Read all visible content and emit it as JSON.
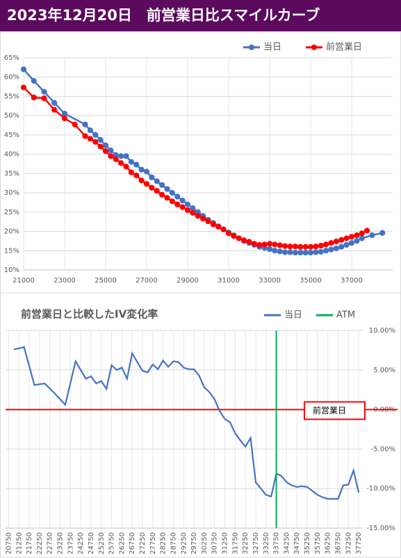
{
  "title": "2023年12月20日　前営業日比スマイルカーブ",
  "chart_data": [
    {
      "type": "line",
      "markers": true,
      "grid": true,
      "legend": "top-right",
      "xlim": [
        21000,
        39000
      ],
      "xticks": [
        21000,
        23000,
        25000,
        27000,
        29000,
        31000,
        33000,
        35000,
        37000
      ],
      "ylim": [
        10,
        65
      ],
      "yticks": [
        {
          "value": 10,
          "label": "10%"
        },
        {
          "value": 15,
          "label": "15%"
        },
        {
          "value": 20,
          "label": "20%"
        },
        {
          "value": 25,
          "label": "25%"
        },
        {
          "value": 30,
          "label": "30%"
        },
        {
          "value": 35,
          "label": "35%"
        },
        {
          "value": 40,
          "label": "40%"
        },
        {
          "value": 45,
          "label": "45%"
        },
        {
          "value": 50,
          "label": "50%"
        },
        {
          "value": 55,
          "label": "55%"
        },
        {
          "value": 60,
          "label": "60%"
        },
        {
          "value": 65,
          "label": "65%"
        }
      ],
      "series": [
        {
          "name": "当日",
          "color": "#4472c4",
          "x": [
            21000,
            21500,
            22000,
            22500,
            23000,
            24000,
            24250,
            24500,
            24750,
            25000,
            25250,
            25500,
            25750,
            26000,
            26250,
            26500,
            26750,
            27000,
            27250,
            27500,
            27750,
            28000,
            28250,
            28500,
            28750,
            29000,
            29250,
            29500,
            29750,
            30000,
            30250,
            30500,
            30750,
            31000,
            31250,
            31500,
            31750,
            32000,
            32250,
            32500,
            32750,
            33000,
            33250,
            33500,
            33750,
            34000,
            34250,
            34500,
            34750,
            35000,
            35250,
            35500,
            35750,
            36000,
            36250,
            36500,
            36750,
            37000,
            37250,
            37500,
            38000,
            38500
          ],
          "values": [
            62.0,
            59.0,
            56.2,
            53.3,
            50.5,
            47.7,
            46.2,
            45.0,
            43.7,
            42.3,
            41.0,
            39.8,
            39.5,
            39.5,
            38.0,
            37.3,
            36.0,
            35.5,
            34.0,
            33.0,
            32.0,
            31.0,
            30.0,
            29.0,
            28.0,
            27.0,
            26.0,
            25.0,
            24.0,
            23.0,
            22.2,
            21.3,
            20.5,
            19.7,
            19.0,
            18.2,
            17.5,
            17.0,
            16.5,
            16.0,
            15.7,
            15.4,
            15.0,
            14.8,
            14.6,
            14.6,
            14.5,
            14.5,
            14.5,
            14.5,
            14.6,
            14.7,
            15.0,
            15.3,
            15.6,
            16.0,
            16.5,
            17.0,
            17.5,
            18.2,
            19.0,
            19.6
          ]
        },
        {
          "name": "前営業日",
          "color": "#ff0000",
          "x": [
            21000,
            21500,
            22000,
            22500,
            23000,
            23500,
            24000,
            24250,
            24500,
            24750,
            25000,
            25250,
            25500,
            25750,
            26000,
            26250,
            26500,
            26750,
            27000,
            27250,
            27500,
            27750,
            28000,
            28250,
            28500,
            28750,
            29000,
            29250,
            29500,
            29750,
            30000,
            30250,
            30500,
            30750,
            31000,
            31250,
            31500,
            31750,
            32000,
            32250,
            32500,
            32750,
            33000,
            33250,
            33500,
            33750,
            34000,
            34250,
            34500,
            34750,
            35000,
            35250,
            35500,
            35750,
            36000,
            36250,
            36500,
            36750,
            37000,
            37250,
            37500,
            37750
          ],
          "values": [
            57.3,
            54.7,
            54.5,
            51.5,
            49.3,
            47.7,
            44.7,
            44.0,
            43.2,
            42.0,
            40.8,
            39.5,
            38.7,
            37.7,
            36.8,
            35.3,
            34.5,
            33.2,
            32.3,
            31.3,
            30.5,
            29.5,
            28.7,
            27.8,
            27.0,
            26.3,
            25.5,
            24.8,
            24.0,
            23.3,
            22.6,
            21.8,
            21.2,
            20.5,
            19.5,
            18.8,
            18.2,
            17.7,
            17.3,
            16.8,
            16.5,
            16.6,
            16.8,
            16.6,
            16.4,
            16.2,
            16.1,
            16.1,
            16.0,
            16.0,
            16.0,
            16.1,
            16.3,
            16.6,
            17.0,
            17.4,
            17.8,
            18.2,
            18.6,
            19.0,
            19.5,
            20.2
          ]
        }
      ]
    },
    {
      "type": "line",
      "markers": false,
      "grid": true,
      "legend": "top-right",
      "title": "前営業日と比較したIV変化率",
      "xlim": [
        20600,
        37950
      ],
      "xticks": [
        20750,
        21250,
        21750,
        22250,
        22750,
        23250,
        23750,
        24250,
        24750,
        25250,
        25750,
        26250,
        26750,
        27250,
        27750,
        28250,
        28750,
        29250,
        29750,
        30250,
        30750,
        31250,
        31750,
        32250,
        32750,
        33250,
        33750,
        34250,
        34750,
        35250,
        35750,
        36250,
        36750,
        37250,
        37750
      ],
      "ylim": [
        -15,
        10
      ],
      "yticks": [
        {
          "value": 10,
          "label": "10.00%"
        },
        {
          "value": 5,
          "label": "5.00%"
        },
        {
          "value": 0,
          "label": "0.00%"
        },
        {
          "value": -5,
          "label": "-5.00%"
        },
        {
          "value": -10,
          "label": "-10.00%"
        },
        {
          "value": -15,
          "label": "-15.00%"
        }
      ],
      "series": [
        {
          "name": "当日",
          "color": "#4472c4",
          "x": [
            21000,
            21500,
            22000,
            22500,
            23000,
            23500,
            24000,
            24250,
            24500,
            24750,
            25000,
            25250,
            25500,
            25750,
            26000,
            26250,
            26500,
            26750,
            27000,
            27250,
            27500,
            27750,
            28000,
            28250,
            28500,
            28750,
            29000,
            29250,
            29500,
            29750,
            30000,
            30250,
            30500,
            30750,
            31000,
            31250,
            31500,
            31750,
            32000,
            32250,
            32500,
            32750,
            33000,
            33250,
            33500,
            33750,
            34000,
            34250,
            34500,
            34750,
            35000,
            35250,
            35500,
            35750,
            36000,
            36250,
            36500,
            36750,
            37000,
            37250,
            37500,
            37750
          ],
          "values": [
            7.6,
            7.9,
            3.1,
            3.3,
            2.0,
            0.6,
            6.1,
            5.0,
            3.9,
            4.2,
            3.3,
            3.6,
            2.6,
            5.6,
            5.0,
            5.3,
            3.9,
            7.1,
            6.0,
            4.9,
            4.7,
            5.7,
            5.1,
            6.2,
            5.4,
            6.1,
            6.0,
            5.3,
            5.1,
            5.1,
            4.3,
            2.8,
            2.2,
            1.3,
            -0.2,
            -1.2,
            -1.6,
            -3.0,
            -3.9,
            -4.7,
            -3.6,
            -9.2,
            -10.0,
            -10.8,
            -11.0,
            -8.1,
            -8.4,
            -9.2,
            -9.6,
            -9.8,
            -9.7,
            -9.8,
            -10.3,
            -10.8,
            -11.1,
            -11.3,
            -11.3,
            -11.3,
            -9.6,
            -9.5,
            -7.7,
            -10.5
          ]
        },
        {
          "name": "ATM",
          "color": "#00b050",
          "x": 33750
        }
      ],
      "reference": {
        "label": "前営業日",
        "value": 0,
        "color": "#ff0000"
      }
    }
  ]
}
